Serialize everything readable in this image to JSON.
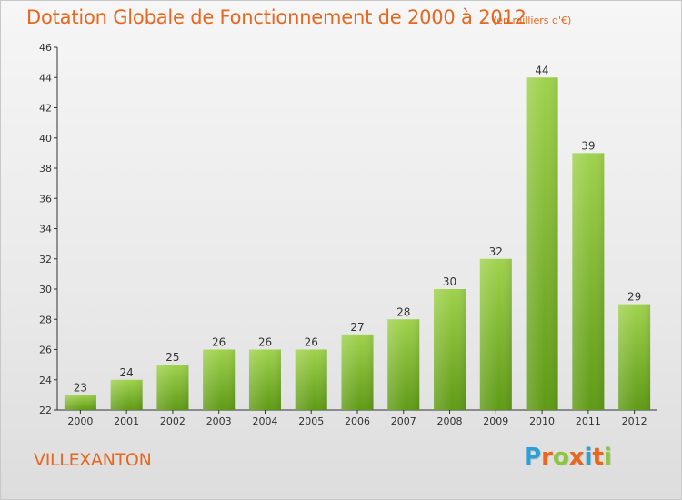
{
  "title": "Dotation Globale de Fonctionnement de 2000 à 2012",
  "subtitle": "(en milliers d'€)",
  "commune": "VILLEXANTON",
  "brand": {
    "letters": [
      "P",
      "r",
      "o",
      "x",
      "i",
      "t",
      "i"
    ],
    "colors": [
      "#2aa0d8",
      "#e8671e",
      "#8cc63f",
      "#e8671e",
      "#2aa0d8",
      "#e8671e",
      "#8cc63f"
    ]
  },
  "colors": {
    "bar_top": "#9fd24d",
    "bar_bottom": "#5f9a16",
    "text": "#e8671e",
    "axis": "#333333"
  },
  "chart_data": {
    "type": "bar",
    "title": "Dotation Globale de Fonctionnement de 2000 à 2012",
    "subtitle": "(en milliers d'€)",
    "xlabel": "",
    "ylabel": "",
    "categories": [
      "2000",
      "2001",
      "2002",
      "2003",
      "2004",
      "2005",
      "2006",
      "2007",
      "2008",
      "2009",
      "2010",
      "2011",
      "2012"
    ],
    "values": [
      23,
      24,
      25,
      26,
      26,
      26,
      27,
      28,
      30,
      32,
      44,
      39,
      29
    ],
    "ylim": [
      22,
      46
    ],
    "yticks": [
      22,
      24,
      26,
      28,
      30,
      32,
      34,
      36,
      38,
      40,
      42,
      44,
      46
    ],
    "grid": false,
    "data_labels": true
  }
}
